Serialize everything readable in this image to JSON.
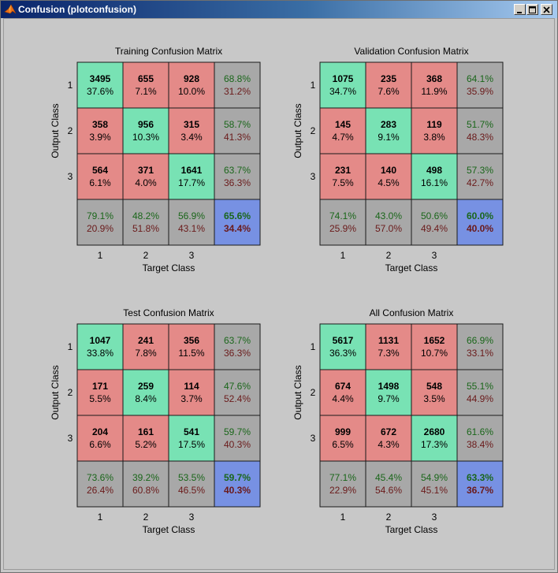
{
  "window": {
    "title": "Confusion (plotconfusion)"
  },
  "icons": {
    "app": "matlab-logo-icon",
    "minimize": "minimize-icon",
    "maximize": "maximize-icon",
    "close": "close-icon"
  },
  "colors": {
    "correct": "#78e2b4",
    "incorrect": "#e48a88",
    "summary": "#a8a8a8",
    "overall": "#7791e3",
    "good_text": "#1a661a",
    "bad_text": "#6a1a1a",
    "titlebar": "#0a246a"
  },
  "chart_data": [
    {
      "type": "heatmap",
      "title": "Training Confusion Matrix",
      "xlabel": "Target Class",
      "ylabel": "Output Class",
      "classes": [
        "1",
        "2",
        "3"
      ],
      "counts": [
        [
          3495,
          655,
          928
        ],
        [
          358,
          956,
          315
        ],
        [
          564,
          371,
          1641
        ]
      ],
      "percents": [
        [
          "37.6%",
          "7.1%",
          "10.0%"
        ],
        [
          "3.9%",
          "10.3%",
          "3.4%"
        ],
        [
          "6.1%",
          "4.0%",
          "17.7%"
        ]
      ],
      "row_summary": [
        [
          "68.8%",
          "31.2%"
        ],
        [
          "58.7%",
          "41.3%"
        ],
        [
          "63.7%",
          "36.3%"
        ]
      ],
      "col_summary": [
        [
          "79.1%",
          "20.9%"
        ],
        [
          "48.2%",
          "51.8%"
        ],
        [
          "56.9%",
          "43.1%"
        ]
      ],
      "overall": [
        "65.6%",
        "34.4%"
      ]
    },
    {
      "type": "heatmap",
      "title": "Validation Confusion Matrix",
      "xlabel": "Target Class",
      "ylabel": "Output Class",
      "classes": [
        "1",
        "2",
        "3"
      ],
      "counts": [
        [
          1075,
          235,
          368
        ],
        [
          145,
          283,
          119
        ],
        [
          231,
          140,
          498
        ]
      ],
      "percents": [
        [
          "34.7%",
          "7.6%",
          "11.9%"
        ],
        [
          "4.7%",
          "9.1%",
          "3.8%"
        ],
        [
          "7.5%",
          "4.5%",
          "16.1%"
        ]
      ],
      "row_summary": [
        [
          "64.1%",
          "35.9%"
        ],
        [
          "51.7%",
          "48.3%"
        ],
        [
          "57.3%",
          "42.7%"
        ]
      ],
      "col_summary": [
        [
          "74.1%",
          "25.9%"
        ],
        [
          "43.0%",
          "57.0%"
        ],
        [
          "50.6%",
          "49.4%"
        ]
      ],
      "overall": [
        "60.0%",
        "40.0%"
      ]
    },
    {
      "type": "heatmap",
      "title": "Test Confusion Matrix",
      "xlabel": "Target Class",
      "ylabel": "Output Class",
      "classes": [
        "1",
        "2",
        "3"
      ],
      "counts": [
        [
          1047,
          241,
          356
        ],
        [
          171,
          259,
          114
        ],
        [
          204,
          161,
          541
        ]
      ],
      "percents": [
        [
          "33.8%",
          "7.8%",
          "11.5%"
        ],
        [
          "5.5%",
          "8.4%",
          "3.7%"
        ],
        [
          "6.6%",
          "5.2%",
          "17.5%"
        ]
      ],
      "row_summary": [
        [
          "63.7%",
          "36.3%"
        ],
        [
          "47.6%",
          "52.4%"
        ],
        [
          "59.7%",
          "40.3%"
        ]
      ],
      "col_summary": [
        [
          "73.6%",
          "26.4%"
        ],
        [
          "39.2%",
          "60.8%"
        ],
        [
          "53.5%",
          "46.5%"
        ]
      ],
      "overall": [
        "59.7%",
        "40.3%"
      ]
    },
    {
      "type": "heatmap",
      "title": "All Confusion Matrix",
      "xlabel": "Target Class",
      "ylabel": "Output Class",
      "classes": [
        "1",
        "2",
        "3"
      ],
      "counts": [
        [
          5617,
          1131,
          1652
        ],
        [
          674,
          1498,
          548
        ],
        [
          999,
          672,
          2680
        ]
      ],
      "percents": [
        [
          "36.3%",
          "7.3%",
          "10.7%"
        ],
        [
          "4.4%",
          "9.7%",
          "3.5%"
        ],
        [
          "6.5%",
          "4.3%",
          "17.3%"
        ]
      ],
      "row_summary": [
        [
          "66.9%",
          "33.1%"
        ],
        [
          "55.1%",
          "44.9%"
        ],
        [
          "61.6%",
          "38.4%"
        ]
      ],
      "col_summary": [
        [
          "77.1%",
          "22.9%"
        ],
        [
          "45.4%",
          "54.6%"
        ],
        [
          "54.9%",
          "45.1%"
        ]
      ],
      "overall": [
        "63.3%",
        "36.7%"
      ]
    }
  ]
}
